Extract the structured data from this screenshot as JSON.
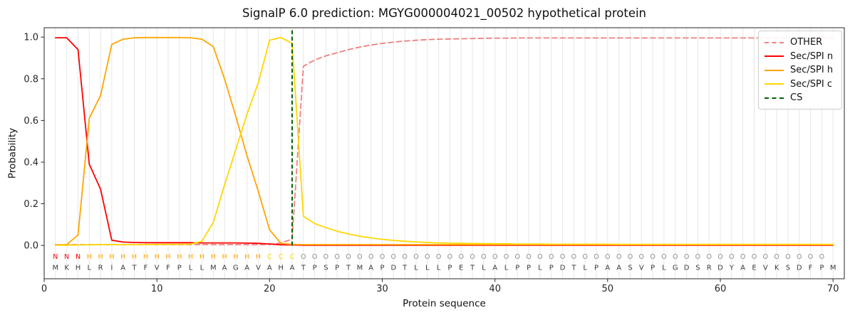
{
  "figure": {
    "title": "SignalP 6.0 prediction: MGYG000004021_00502 hypothetical protein",
    "xlabel": "Protein sequence",
    "ylabel": "Probability"
  },
  "chart_data": {
    "type": "line",
    "title": "SignalP 6.0 prediction: MGYG000004021_00502 hypothetical protein",
    "xlabel": "Protein sequence",
    "ylabel": "Probability",
    "xlim": [
      0,
      71
    ],
    "ylim": [
      -0.16,
      1.045
    ],
    "xticks": [
      0,
      10,
      20,
      30,
      40,
      50,
      60,
      70
    ],
    "yticks": [
      "0.0",
      "0.2",
      "0.4",
      "0.6",
      "0.8",
      "1.0"
    ],
    "grid": "vertical line at every residue position, light gray",
    "legend_position": "upper right",
    "x_start": 1,
    "series": [
      {
        "name": "OTHER",
        "color": "#f08080",
        "style": "dashed",
        "values": [
          0.004,
          0.004,
          0.004,
          0.004,
          0.004,
          0.004,
          0.004,
          0.004,
          0.004,
          0.004,
          0.004,
          0.004,
          0.004,
          0.004,
          0.004,
          0.004,
          0.004,
          0.004,
          0.004,
          0.005,
          0.012,
          0.03,
          0.86,
          0.89,
          0.91,
          0.925,
          0.94,
          0.952,
          0.962,
          0.97,
          0.976,
          0.981,
          0.985,
          0.988,
          0.99,
          0.991,
          0.992,
          0.993,
          0.994,
          0.995,
          0.995,
          0.996,
          0.996,
          0.996,
          0.996,
          0.996,
          0.996,
          0.996,
          0.996,
          0.996,
          0.996,
          0.996,
          0.996,
          0.996,
          0.996,
          0.996,
          0.996,
          0.996,
          0.996,
          0.996,
          0.996,
          0.996,
          0.996,
          0.996,
          0.996,
          0.996,
          0.996,
          0.996,
          0.996,
          0.996
        ]
      },
      {
        "name": "Sec/SPI n",
        "color": "#ff0000",
        "style": "solid",
        "values": [
          0.997,
          0.997,
          0.94,
          0.39,
          0.27,
          0.025,
          0.016,
          0.014,
          0.013,
          0.013,
          0.013,
          0.013,
          0.013,
          0.012,
          0.012,
          0.012,
          0.012,
          0.011,
          0.01,
          0.007,
          0.003,
          0.002,
          0.001,
          0.001,
          0.001,
          0.001,
          0.001,
          0.001,
          0.001,
          0.001,
          0.001,
          0.001,
          0.001,
          0.001,
          0.001,
          0.001,
          0.001,
          0.001,
          0.001,
          0.001,
          0.001,
          0.001,
          0.001,
          0.001,
          0.001,
          0.001,
          0.001,
          0.001,
          0.001,
          0.001,
          0.001,
          0.001,
          0.001,
          0.001,
          0.001,
          0.001,
          0.001,
          0.001,
          0.001,
          0.001,
          0.001,
          0.001,
          0.001,
          0.001,
          0.001,
          0.001,
          0.001,
          0.001,
          0.001,
          0.001
        ]
      },
      {
        "name": "Sec/SPI h",
        "color": "#ffa500",
        "style": "solid",
        "values": [
          0.002,
          0.004,
          0.05,
          0.61,
          0.72,
          0.965,
          0.99,
          0.997,
          0.998,
          0.998,
          0.998,
          0.998,
          0.997,
          0.99,
          0.955,
          0.8,
          0.62,
          0.43,
          0.26,
          0.075,
          0.01,
          0.005,
          0.004,
          0.004,
          0.004,
          0.004,
          0.004,
          0.004,
          0.004,
          0.004,
          0.004,
          0.004,
          0.004,
          0.004,
          0.004,
          0.004,
          0.004,
          0.004,
          0.004,
          0.004,
          0.004,
          0.004,
          0.004,
          0.004,
          0.004,
          0.004,
          0.004,
          0.004,
          0.004,
          0.004,
          0.004,
          0.004,
          0.004,
          0.004,
          0.004,
          0.004,
          0.004,
          0.004,
          0.004,
          0.004,
          0.004,
          0.004,
          0.004,
          0.004,
          0.004,
          0.004,
          0.004,
          0.004,
          0.004,
          0.004
        ]
      },
      {
        "name": "Sec/SPI c",
        "color": "#ffd700",
        "style": "solid",
        "values": [
          0.001,
          0.001,
          0.002,
          0.003,
          0.004,
          0.004,
          0.004,
          0.004,
          0.004,
          0.005,
          0.005,
          0.005,
          0.006,
          0.02,
          0.11,
          0.29,
          0.46,
          0.63,
          0.78,
          0.985,
          0.998,
          0.97,
          0.14,
          0.105,
          0.085,
          0.068,
          0.055,
          0.044,
          0.036,
          0.029,
          0.024,
          0.02,
          0.017,
          0.014,
          0.012,
          0.011,
          0.01,
          0.009,
          0.009,
          0.008,
          0.008,
          0.007,
          0.007,
          0.007,
          0.006,
          0.006,
          0.006,
          0.006,
          0.006,
          0.006,
          0.005,
          0.005,
          0.005,
          0.005,
          0.005,
          0.005,
          0.005,
          0.005,
          0.005,
          0.005,
          0.005,
          0.005,
          0.005,
          0.005,
          0.005,
          0.005,
          0.005,
          0.005,
          0.005,
          0.005
        ]
      }
    ],
    "cs_marker": {
      "name": "CS",
      "x": 22,
      "color": "#006400",
      "style": "dashed"
    },
    "sequence": "MKHLRIATFVFPLLMAGAVAHATPSPTMAPDTLLLPETLALPPLPDTLPAASVPLGDSRDYAEVKSDFPM",
    "region_labels": "NNNHHHHHHHHHHHHHHHHCCCOOOOOOOOOOOOOOOOOOOOOOOOOOOOOOOOOOOOOOOOOOOOOOO",
    "region_colors": {
      "N": "#ff0000",
      "H": "#ffa500",
      "C": "#ffd700",
      "O": "#8c8c8c"
    },
    "sequence_color": "#3d3d3d",
    "grid_color": "#e7e7e7",
    "spine_color": "#262626"
  }
}
